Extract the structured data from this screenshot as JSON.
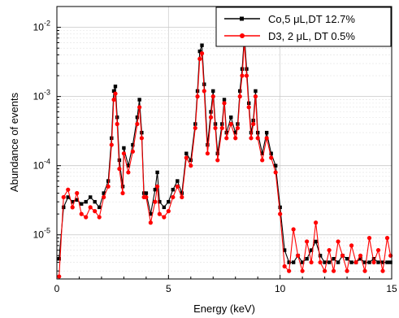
{
  "chart_data": {
    "type": "line",
    "title": "",
    "xlabel": "Energy (keV)",
    "ylabel": "Abundance of events",
    "x_ticks": [
      0,
      5,
      10,
      15
    ],
    "x_tick_labels": [
      "0",
      "5",
      "10",
      "15"
    ],
    "xlim": [
      0,
      15
    ],
    "y_scale": "log",
    "ylim": [
      2.3e-06,
      0.02
    ],
    "y_ticks": [
      1e-05,
      0.0001,
      0.001,
      0.01
    ],
    "y_tick_labels": [
      "10-5",
      "10-4",
      "10-3",
      "10-2"
    ],
    "grid": true,
    "legend_position": "top-right",
    "series": [
      {
        "name": "Co,5 μL,DT 12.7%",
        "color": "#000000",
        "marker": "square",
        "x": [
          0.1,
          0.3,
          0.5,
          0.7,
          0.9,
          1.1,
          1.3,
          1.5,
          1.7,
          1.9,
          2.1,
          2.3,
          2.45,
          2.55,
          2.62,
          2.7,
          2.8,
          2.95,
          3.0,
          3.2,
          3.4,
          3.6,
          3.7,
          3.8,
          3.9,
          4.0,
          4.2,
          4.4,
          4.5,
          4.6,
          4.8,
          5.0,
          5.2,
          5.4,
          5.6,
          5.8,
          6.0,
          6.2,
          6.3,
          6.4,
          6.5,
          6.6,
          6.75,
          6.9,
          7.0,
          7.1,
          7.2,
          7.4,
          7.5,
          7.6,
          7.8,
          8.0,
          8.1,
          8.2,
          8.3,
          8.4,
          8.5,
          8.6,
          8.7,
          8.8,
          8.9,
          9.0,
          9.2,
          9.4,
          9.6,
          9.8,
          10.0,
          10.2,
          10.4,
          10.6,
          10.8,
          11.0,
          11.2,
          11.4,
          11.6,
          11.8,
          12.0,
          12.2,
          12.4,
          12.6,
          12.8,
          13.0,
          13.2,
          13.4,
          13.6,
          13.8,
          14.0,
          14.2,
          14.4,
          14.6,
          14.8,
          14.95
        ],
        "y": [
          4.5e-06,
          2.5e-05,
          3.5e-05,
          3e-05,
          3.2e-05,
          2.8e-05,
          3e-05,
          3.5e-05,
          3e-05,
          2.5e-05,
          4e-05,
          6e-05,
          0.00025,
          0.0012,
          0.0014,
          0.0005,
          0.00012,
          5e-05,
          0.00018,
          0.0001,
          0.0002,
          0.0005,
          0.0009,
          0.0003,
          4e-05,
          4e-05,
          2e-05,
          4.5e-05,
          8e-05,
          3e-05,
          2.5e-05,
          3e-05,
          4.5e-05,
          6e-05,
          4e-05,
          0.00015,
          0.00012,
          0.0004,
          0.0012,
          0.0045,
          0.0055,
          0.0015,
          0.0002,
          0.0006,
          0.0012,
          0.0004,
          0.00015,
          0.0004,
          0.0009,
          0.0003,
          0.0005,
          0.0003,
          0.0004,
          0.0012,
          0.0025,
          0.0075,
          0.0025,
          0.0008,
          0.0003,
          0.00045,
          0.0012,
          0.0003,
          0.00015,
          0.0003,
          0.00015,
          0.0001,
          2.5e-05,
          6e-06,
          4e-06,
          4e-06,
          5e-06,
          4e-06,
          4.5e-06,
          6e-06,
          8e-06,
          5e-06,
          4e-06,
          4e-06,
          4.5e-06,
          4e-06,
          5e-06,
          4.5e-06,
          4e-06,
          4e-06,
          4.5e-06,
          4e-06,
          4e-06,
          4.5e-06,
          4e-06,
          4e-06,
          4e-06,
          4e-06
        ]
      },
      {
        "name": "D3, 2 μL, DT 0.5%",
        "color": "#ff0000",
        "marker": "circle",
        "x": [
          0.1,
          0.3,
          0.5,
          0.7,
          0.9,
          1.1,
          1.3,
          1.5,
          1.7,
          1.9,
          2.1,
          2.3,
          2.45,
          2.55,
          2.62,
          2.7,
          2.8,
          2.95,
          3.0,
          3.2,
          3.4,
          3.6,
          3.7,
          3.8,
          3.9,
          4.0,
          4.2,
          4.4,
          4.5,
          4.6,
          4.8,
          5.0,
          5.2,
          5.4,
          5.6,
          5.8,
          6.0,
          6.2,
          6.3,
          6.4,
          6.5,
          6.6,
          6.75,
          6.9,
          7.0,
          7.1,
          7.2,
          7.4,
          7.5,
          7.6,
          7.8,
          8.0,
          8.1,
          8.2,
          8.3,
          8.4,
          8.5,
          8.6,
          8.7,
          8.8,
          8.9,
          9.0,
          9.2,
          9.4,
          9.6,
          9.8,
          10.0,
          10.2,
          10.4,
          10.6,
          10.8,
          11.0,
          11.2,
          11.4,
          11.6,
          11.8,
          12.0,
          12.2,
          12.4,
          12.6,
          12.8,
          13.0,
          13.2,
          13.4,
          13.6,
          13.8,
          14.0,
          14.2,
          14.4,
          14.6,
          14.8,
          14.95
        ],
        "y": [
          2.5e-06,
          3.5e-05,
          4.5e-05,
          2.5e-05,
          4e-05,
          2e-05,
          1.8e-05,
          2.5e-05,
          2.2e-05,
          1.8e-05,
          3.5e-05,
          5e-05,
          0.0002,
          0.0009,
          0.0011,
          0.0004,
          9e-05,
          4e-05,
          0.00015,
          8e-05,
          0.00016,
          0.0004,
          0.0007,
          0.00025,
          3.5e-05,
          3.5e-05,
          1.5e-05,
          3e-05,
          5e-05,
          2e-05,
          1.8e-05,
          2.2e-05,
          3.5e-05,
          5e-05,
          3.5e-05,
          0.00013,
          0.0001,
          0.00035,
          0.001,
          0.0035,
          0.0042,
          0.0012,
          0.00015,
          0.0005,
          0.001,
          0.00035,
          0.00012,
          0.00035,
          0.0008,
          0.00025,
          0.0004,
          0.00025,
          0.00035,
          0.001,
          0.002,
          0.006,
          0.002,
          0.0007,
          0.00025,
          0.0004,
          0.001,
          0.00025,
          0.00012,
          0.00025,
          0.00013,
          8e-05,
          2e-05,
          3.5e-06,
          3e-06,
          1.2e-05,
          5e-06,
          3e-06,
          8e-06,
          4e-06,
          1.5e-05,
          4e-06,
          3e-06,
          6e-06,
          3e-06,
          8e-06,
          5e-06,
          3e-06,
          7e-06,
          4e-06,
          5e-06,
          3e-06,
          9e-06,
          4e-06,
          6e-06,
          3e-06,
          9e-06,
          5e-06
        ]
      }
    ]
  }
}
